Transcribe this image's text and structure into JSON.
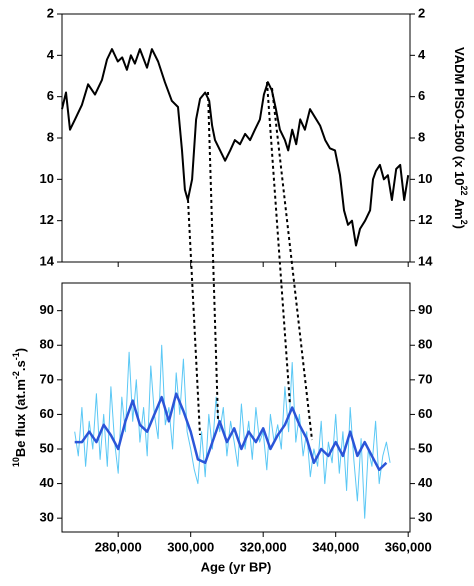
{
  "chart_data": [
    {
      "type": "line",
      "invert_y": true,
      "ylabel_parts": [
        {
          "text": "VADM PISO-1500 (x 10",
          "sup": false
        },
        {
          "text": "22",
          "sup": true
        },
        {
          "text": " Am",
          "sup": false
        },
        {
          "text": "2",
          "sup": true
        },
        {
          "text": ")",
          "sup": false
        }
      ],
      "xlim": [
        264500,
        360500
      ],
      "ylim": [
        2,
        14
      ],
      "yticks": [
        2,
        4,
        6,
        8,
        10,
        12,
        14
      ],
      "series": [
        {
          "color": "#000000",
          "x": [
            264500,
            265600,
            266700,
            268100,
            270000,
            271700,
            273600,
            275500,
            276900,
            278300,
            279900,
            281100,
            282400,
            283500,
            284600,
            286000,
            287950,
            289300,
            291000,
            292900,
            294800,
            296500,
            297600,
            298400,
            299200,
            300400,
            301500,
            302600,
            304000,
            305100,
            305900,
            306700,
            308100,
            309500,
            310900,
            312200,
            313600,
            315000,
            316400,
            317700,
            319100,
            320200,
            321300,
            322400,
            323500,
            324600,
            326000,
            326900,
            328000,
            329100,
            330200,
            331500,
            332900,
            334300,
            335700,
            337100,
            338400,
            339800,
            341200,
            342300,
            343400,
            344500,
            345600,
            346700,
            348100,
            349500,
            350300,
            351100,
            352200,
            353300,
            354400,
            355500,
            356700,
            357800,
            358900,
            360000
          ],
          "values": [
            6.6,
            5.8,
            7.6,
            7.1,
            6.4,
            5.4,
            5.9,
            5.2,
            4.2,
            3.7,
            4.3,
            4.1,
            4.7,
            4.0,
            4.4,
            3.7,
            4.6,
            3.7,
            4.3,
            5.3,
            6.2,
            6.5,
            8.6,
            10.5,
            11.0,
            10.0,
            7.1,
            6.1,
            5.8,
            6.2,
            7.4,
            8.1,
            8.6,
            9.1,
            8.6,
            8.1,
            8.3,
            7.8,
            8.1,
            7.6,
            7.1,
            5.9,
            5.3,
            5.7,
            6.6,
            7.6,
            8.1,
            8.6,
            7.6,
            8.3,
            7.1,
            7.6,
            6.6,
            7.0,
            7.4,
            8.1,
            8.5,
            8.6,
            9.8,
            11.5,
            12.2,
            12.0,
            13.2,
            12.4,
            12.0,
            11.5,
            10.0,
            9.6,
            9.3,
            10.0,
            9.8,
            11.0,
            9.5,
            9.3,
            11.0,
            9.8
          ]
        }
      ]
    },
    {
      "type": "line",
      "xlabel": "Age (yr BP)",
      "ylabel_parts": [
        {
          "text": "10",
          "sup": true
        },
        {
          "text": "Be flux (at.m",
          "sup": false
        },
        {
          "text": "-2",
          "sup": true
        },
        {
          "text": ".s",
          "sup": false
        },
        {
          "text": "-1",
          "sup": true
        },
        {
          "text": ")",
          "sup": false
        }
      ],
      "xlim": [
        264500,
        360500
      ],
      "ylim": [
        26,
        98
      ],
      "yticks": [
        30,
        40,
        50,
        60,
        70,
        80,
        90
      ],
      "xticks": [
        {
          "value": 280000,
          "label": "280,000"
        },
        {
          "value": 300000,
          "label": "300,000"
        },
        {
          "value": 320000,
          "label": "320,000"
        },
        {
          "value": 340000,
          "label": "340,000"
        },
        {
          "value": 360000,
          "label": "360,000"
        }
      ],
      "series": [
        {
          "color": "#5bc8f5",
          "width": 1,
          "x": [
            268000,
            269000,
            270000,
            271000,
            272000,
            273000,
            274000,
            275000,
            276000,
            277000,
            278000,
            279000,
            280000,
            281000,
            282000,
            283000,
            284000,
            285000,
            286000,
            287000,
            288000,
            289000,
            290000,
            291000,
            292000,
            293000,
            294000,
            295000,
            296000,
            297000,
            298000,
            299000,
            300000,
            301000,
            302000,
            303000,
            304000,
            305000,
            306000,
            307000,
            308000,
            309000,
            310000,
            311000,
            312000,
            313000,
            314000,
            315000,
            316000,
            317000,
            318000,
            319000,
            320000,
            321000,
            322000,
            323000,
            324000,
            325000,
            326000,
            327000,
            328000,
            329000,
            330000,
            331000,
            332000,
            333000,
            334000,
            335000,
            336000,
            337000,
            338000,
            339000,
            340000,
            341000,
            342000,
            343000,
            344000,
            345000,
            346000,
            347000,
            348000,
            349000,
            350000,
            351000,
            352000,
            353000,
            354000,
            355000
          ],
          "values": [
            55,
            48,
            62,
            45,
            58,
            50,
            66,
            47,
            60,
            45,
            68,
            52,
            43,
            65,
            55,
            78,
            58,
            70,
            52,
            62,
            48,
            74,
            60,
            53,
            80,
            57,
            62,
            50,
            72,
            60,
            76,
            55,
            50,
            44,
            40,
            55,
            42,
            60,
            50,
            65,
            55,
            62,
            48,
            58,
            52,
            45,
            63,
            50,
            58,
            47,
            62,
            52,
            55,
            44,
            60,
            52,
            57,
            50,
            68,
            55,
            75,
            52,
            60,
            48,
            55,
            42,
            50,
            45,
            58,
            40,
            52,
            46,
            60,
            43,
            55,
            38,
            62,
            47,
            35,
            53,
            30,
            50,
            45,
            58,
            40,
            48,
            52,
            46
          ]
        },
        {
          "color": "#2b55d8",
          "width": 2.5,
          "x": [
            268000,
            270000,
            272000,
            274000,
            276000,
            278000,
            280000,
            282000,
            284000,
            286000,
            288000,
            290000,
            292000,
            294000,
            296000,
            298000,
            300000,
            302000,
            304000,
            306000,
            308000,
            310000,
            312000,
            314000,
            316000,
            318000,
            320000,
            322000,
            324000,
            326000,
            328000,
            330000,
            332000,
            334000,
            336000,
            338000,
            340000,
            342000,
            344000,
            346000,
            348000,
            350000,
            352000,
            354000
          ],
          "values": [
            52,
            52,
            55,
            52,
            57,
            54,
            50,
            58,
            64,
            57,
            55,
            60,
            65,
            58,
            66,
            61,
            55,
            47,
            46,
            52,
            58,
            52,
            56,
            50,
            55,
            52,
            56,
            50,
            54,
            57,
            62,
            57,
            53,
            46,
            50,
            48,
            52,
            48,
            55,
            48,
            52,
            48,
            44,
            46
          ]
        }
      ]
    }
  ]
}
